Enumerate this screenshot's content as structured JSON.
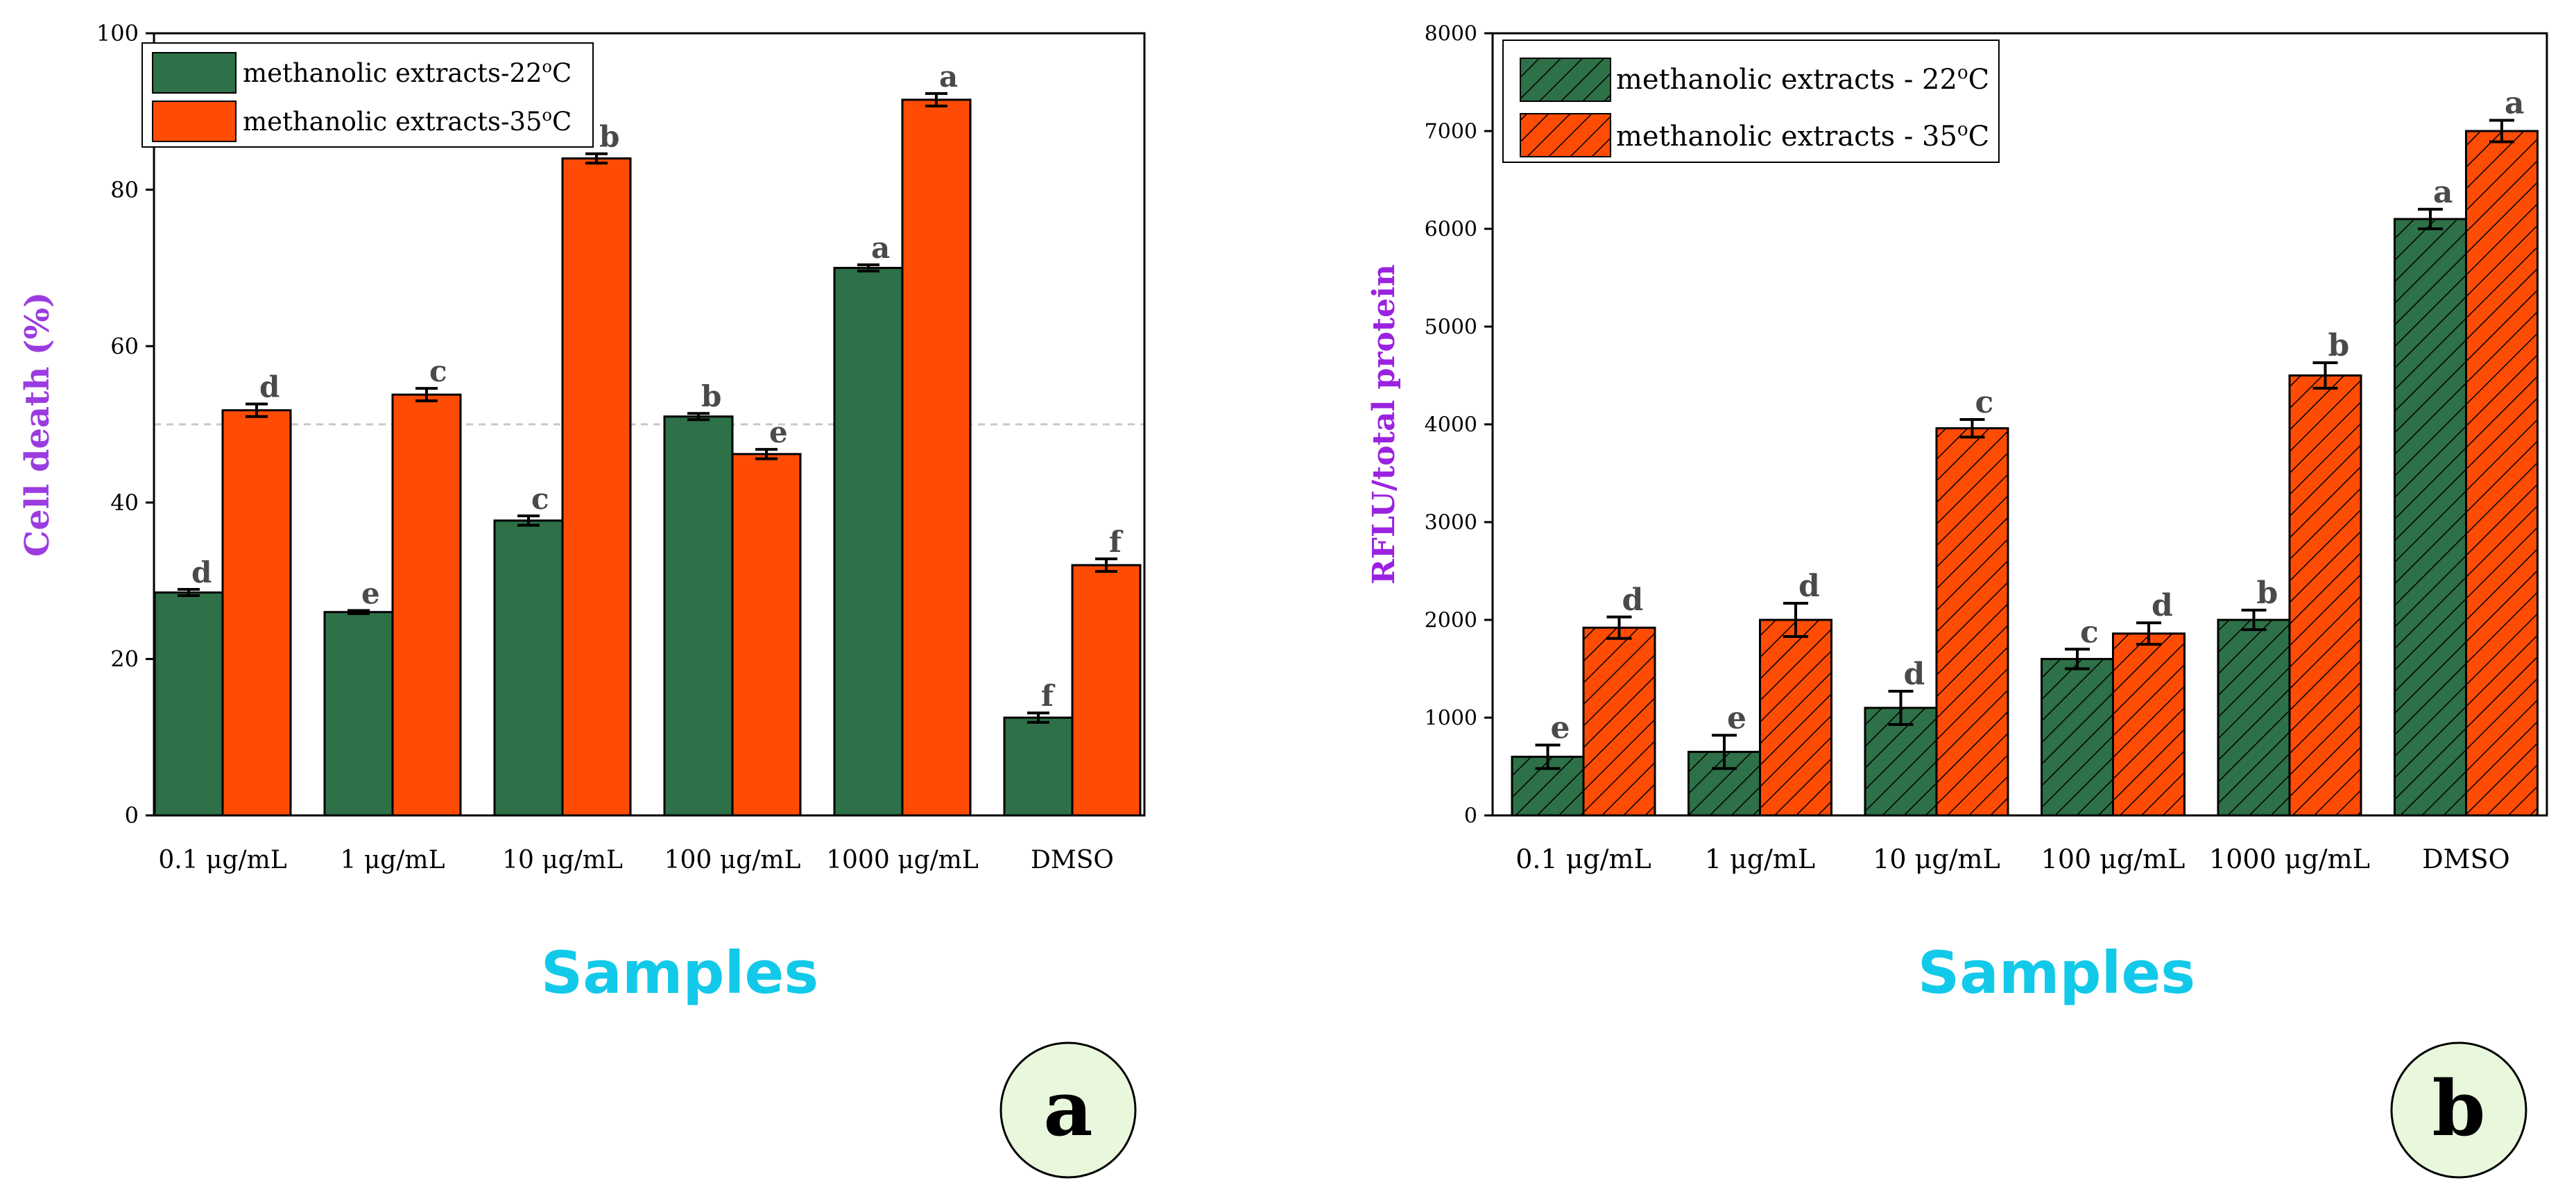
{
  "colors": {
    "series_a": "#2e7047",
    "series_b": "#ff4c05",
    "ylabel_a": "#9b3ce0",
    "ylabel_b": "#9b22e0",
    "xlabel": "#13c9ea",
    "badge_fill": "#e9f7dc",
    "refline": "#c8c8c8"
  },
  "chart_data": [
    {
      "id": "a",
      "type": "bar",
      "panel_label": "a",
      "categories": [
        "0.1 μg/mL",
        "1 μg/mL",
        "10 μg/mL",
        "100 μg/mL",
        "1000 μg/mL",
        "DMSO"
      ],
      "series": [
        {
          "name": "methanolic extracts-22",
          "degree_unit": "o",
          "scale_unit": "C",
          "values": [
            28.5,
            26,
            37.7,
            51,
            70,
            12.5
          ],
          "errors": [
            0.4,
            0.2,
            0.6,
            0.4,
            0.4,
            0.6
          ],
          "letters": [
            "d",
            "e",
            "c",
            "b",
            "a",
            "f"
          ]
        },
        {
          "name": "methanolic extracts-35",
          "degree_unit": "o",
          "scale_unit": "C",
          "values": [
            51.8,
            53.8,
            84,
            46.2,
            91.5,
            32
          ],
          "errors": [
            0.8,
            0.8,
            0.6,
            0.6,
            0.8,
            0.8
          ],
          "letters": [
            "d",
            "c",
            "b",
            "e",
            "a",
            "f"
          ]
        }
      ],
      "ylim": [
        0,
        100
      ],
      "yticks": [
        0,
        20,
        40,
        60,
        80,
        100
      ],
      "reference_line": 50,
      "ylabel": "Cell death (%)",
      "xlabel": "Samples",
      "hatched": false,
      "legend_position": "top-left"
    },
    {
      "id": "b",
      "type": "bar",
      "panel_label": "b",
      "categories": [
        "0.1 μg/mL",
        "1 μg/mL",
        "10 μg/mL",
        "100 μg/mL",
        "1000 μg/mL",
        "DMSO"
      ],
      "series": [
        {
          "name": "methanolic extracts - 22",
          "degree_unit": "o",
          "scale_unit": "C",
          "values": [
            600,
            650,
            1100,
            1600,
            2000,
            6100
          ],
          "errors": [
            120,
            170,
            170,
            100,
            100,
            100
          ],
          "letters": [
            "e",
            "e",
            "d",
            "c",
            "b",
            "a"
          ]
        },
        {
          "name": "methanolic extracts - 35",
          "degree_unit": "o",
          "scale_unit": "C",
          "values": [
            1920,
            2000,
            3960,
            1860,
            4500,
            7000
          ],
          "errors": [
            110,
            170,
            90,
            110,
            130,
            110
          ],
          "letters": [
            "d",
            "d",
            "c",
            "d",
            "b",
            "a"
          ]
        }
      ],
      "ylim": [
        0,
        8000
      ],
      "yticks": [
        0,
        1000,
        2000,
        3000,
        4000,
        5000,
        6000,
        7000,
        8000
      ],
      "ylabel": "RFLU/total protein",
      "xlabel": "Samples",
      "hatched": true,
      "legend_position": "top-left"
    }
  ]
}
